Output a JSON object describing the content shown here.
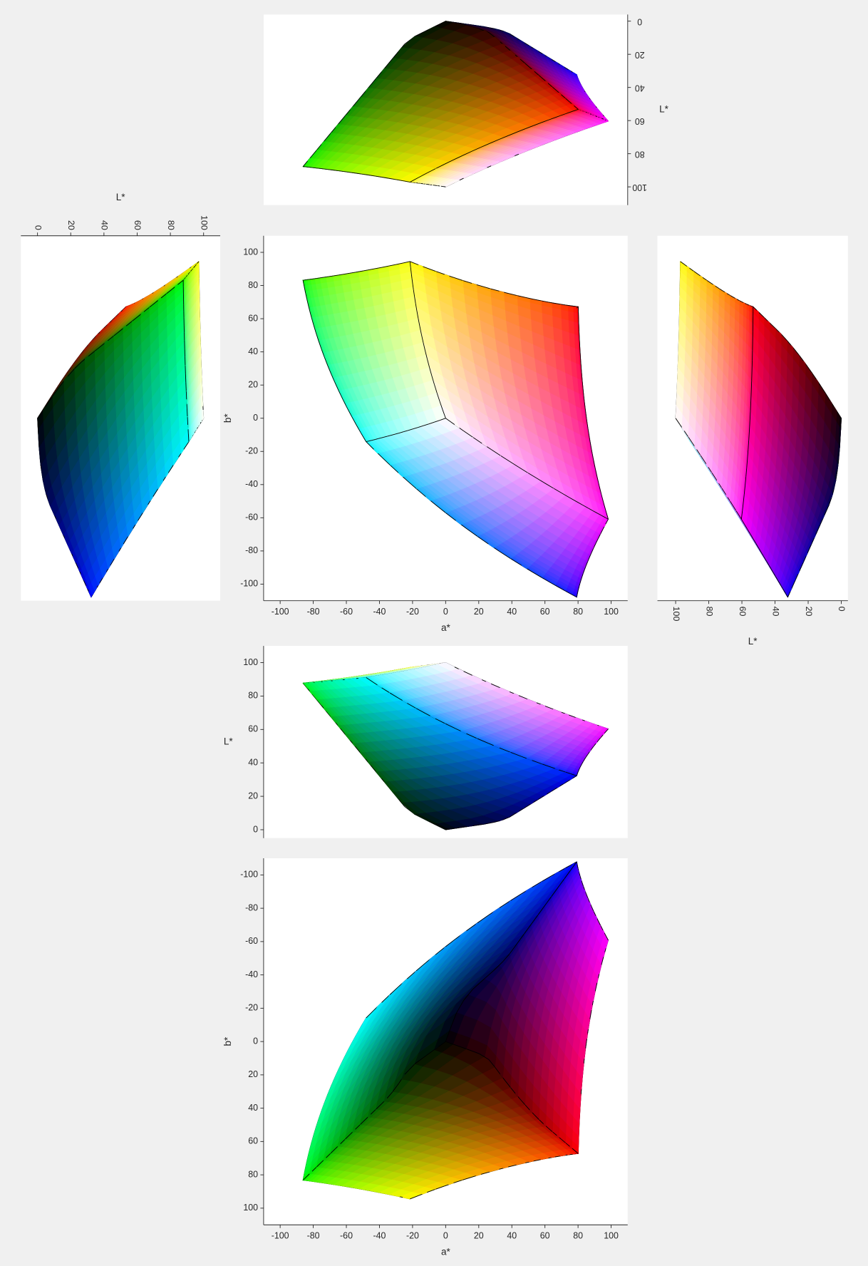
{
  "chart_data": [
    {
      "type": "gamut",
      "x_axis": "a",
      "y_axis": "L",
      "depth_axis": "b",
      "depth_sign": 1,
      "x_axis_position": "none",
      "y_axis_position": "right",
      "ylabel": "L*",
      "ylabel_rotation": 0,
      "tick_label_rotation": 180,
      "xlim": [
        -110,
        110
      ],
      "ylim": [
        111,
        -4
      ],
      "yticks": [
        0,
        20,
        40,
        60,
        80,
        100
      ]
    },
    {
      "type": "gamut",
      "x_axis": "L",
      "y_axis": "b",
      "depth_axis": "a",
      "depth_sign": -1,
      "x_axis_position": "top",
      "y_axis_position": "none",
      "xlabel": "L*",
      "tick_label_rotation": 90,
      "xlim": [
        -10,
        110
      ],
      "ylim": [
        -110,
        110
      ],
      "xticks": [
        0,
        20,
        40,
        60,
        80,
        100
      ]
    },
    {
      "type": "gamut",
      "x_axis": "a",
      "y_axis": "b",
      "depth_axis": "L",
      "depth_sign": 1,
      "x_axis_position": "bottom",
      "y_axis_position": "left",
      "xlabel": "a*",
      "ylabel": "b*",
      "ylabel_rotation": -90,
      "tick_label_rotation": 0,
      "xlim": [
        -110,
        110
      ],
      "ylim": [
        -110,
        110
      ],
      "xticks": [
        -100,
        -80,
        -60,
        -40,
        -20,
        0,
        20,
        40,
        60,
        80,
        100
      ],
      "yticks": [
        -100,
        -80,
        -60,
        -40,
        -20,
        0,
        20,
        40,
        60,
        80,
        100
      ]
    },
    {
      "type": "gamut",
      "x_axis": "L",
      "y_axis": "b",
      "depth_axis": "a",
      "depth_sign": 1,
      "x_axis_position": "bottom",
      "y_axis_position": "none",
      "xlabel": "L*",
      "tick_label_rotation": 90,
      "xlim": [
        111,
        -4
      ],
      "ylim": [
        -110,
        110
      ],
      "xticks": [
        0,
        20,
        40,
        60,
        80,
        100
      ]
    },
    {
      "type": "gamut",
      "x_axis": "a",
      "y_axis": "L",
      "depth_axis": "b",
      "depth_sign": -1,
      "x_axis_position": "none",
      "y_axis_position": "left",
      "ylabel": "L*",
      "ylabel_rotation": 0,
      "tick_label_rotation": 0,
      "xlim": [
        -110,
        110
      ],
      "ylim": [
        -5,
        110
      ],
      "yticks": [
        0,
        20,
        40,
        60,
        80,
        100
      ]
    },
    {
      "type": "gamut",
      "x_axis": "a",
      "y_axis": "b",
      "depth_axis": "L",
      "depth_sign": -1,
      "x_axis_position": "bottom",
      "y_axis_position": "left",
      "xlabel": "a*",
      "ylabel": "b*",
      "ylabel_rotation": -90,
      "tick_label_rotation": 0,
      "xlim": [
        -110,
        110
      ],
      "ylim": [
        110,
        -110
      ],
      "xticks": [
        -100,
        -80,
        -60,
        -40,
        -20,
        0,
        20,
        40,
        60,
        80,
        100
      ],
      "yticks": [
        -100,
        -80,
        -60,
        -40,
        -20,
        0,
        20,
        40,
        60,
        80,
        100
      ]
    }
  ]
}
